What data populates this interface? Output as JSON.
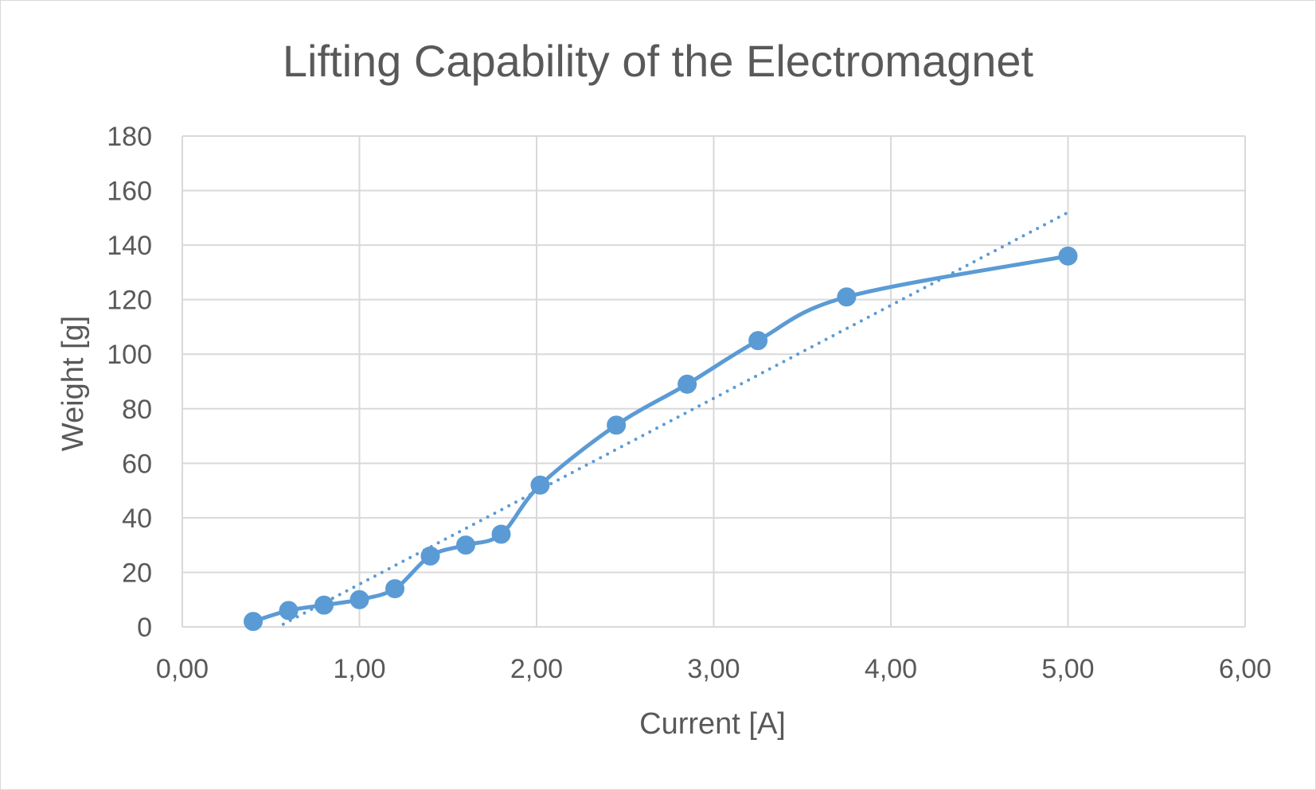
{
  "chart_data": {
    "type": "scatter",
    "title": "Lifting Capability of the Electromagnet",
    "xlabel": "Current [A]",
    "ylabel": "Weight [g]",
    "xlim": [
      0,
      6
    ],
    "ylim": [
      0,
      180
    ],
    "xticks": [
      0,
      1,
      2,
      3,
      4,
      5,
      6
    ],
    "yticks": [
      0,
      20,
      40,
      60,
      80,
      100,
      120,
      140,
      160,
      180
    ],
    "xtick_labels": [
      "0,00",
      "1,00",
      "2,00",
      "3,00",
      "4,00",
      "5,00",
      "6,00"
    ],
    "ytick_labels": [
      "0",
      "20",
      "40",
      "60",
      "80",
      "100",
      "120",
      "140",
      "160",
      "180"
    ],
    "grid": true,
    "legend": "none",
    "series": [
      {
        "style": "smoothed line with markers",
        "color": "#5b9bd5",
        "x": [
          0.4,
          0.6,
          0.8,
          1.0,
          1.2,
          1.4,
          1.6,
          1.8,
          2.02,
          2.45,
          2.85,
          3.25,
          3.75,
          5.0
        ],
        "y": [
          2,
          6,
          8,
          10,
          14,
          26,
          30,
          34,
          52,
          74,
          89,
          105,
          121,
          136
        ]
      }
    ],
    "trendline": {
      "type": "linear",
      "style": "dotted",
      "color": "#5b9bd5",
      "x_range": [
        0.57,
        5.0
      ],
      "y_range": [
        1,
        152
      ]
    }
  }
}
